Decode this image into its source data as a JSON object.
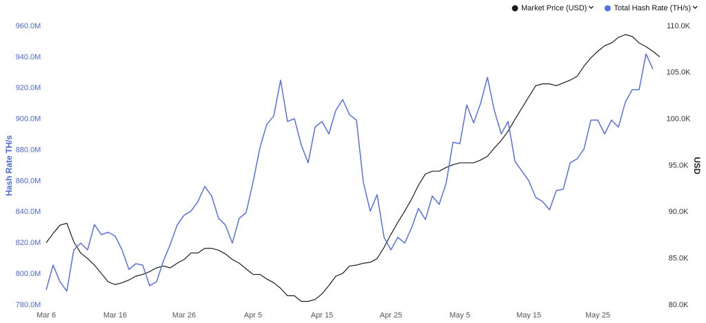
{
  "chart_data": {
    "type": "line",
    "legend_position": "top-right",
    "y_label": "Hash Rate TH/s",
    "y2_label": "USD",
    "categories": [
      "Mar 6",
      null,
      null,
      null,
      null,
      null,
      null,
      null,
      null,
      null,
      "Mar 16",
      null,
      null,
      null,
      null,
      null,
      null,
      null,
      null,
      null,
      "Mar 26",
      null,
      null,
      null,
      null,
      null,
      null,
      null,
      null,
      null,
      "Apr 5",
      null,
      null,
      null,
      null,
      null,
      null,
      null,
      null,
      null,
      "Apr 15",
      null,
      null,
      null,
      null,
      null,
      null,
      null,
      null,
      null,
      "Apr 25",
      null,
      null,
      null,
      null,
      null,
      null,
      null,
      null,
      null,
      "May 5",
      null,
      null,
      null,
      null,
      null,
      null,
      null,
      null,
      null,
      "May 15",
      null,
      null,
      null,
      null,
      null,
      null,
      null,
      null,
      null,
      "May 25",
      null,
      null,
      null,
      null,
      null,
      null,
      null,
      null,
      null
    ],
    "ylim": [
      780,
      960
    ],
    "yticks": [
      {
        "value": 780,
        "label": "780.0M"
      },
      {
        "value": 800,
        "label": "800.0M"
      },
      {
        "value": 820,
        "label": "820.0M"
      },
      {
        "value": 840,
        "label": "840.0M"
      },
      {
        "value": 860,
        "label": "860.0M"
      },
      {
        "value": 880,
        "label": "880.0M"
      },
      {
        "value": 900,
        "label": "900.0M"
      },
      {
        "value": 920,
        "label": "920.0M"
      },
      {
        "value": 940,
        "label": "940.0M"
      },
      {
        "value": 960,
        "label": "960.0M"
      }
    ],
    "y2lim": [
      80,
      110
    ],
    "y2ticks": [
      {
        "value": 80,
        "label": "80.0K"
      },
      {
        "value": 85,
        "label": "85.0K"
      },
      {
        "value": 90,
        "label": "90.0K"
      },
      {
        "value": 95,
        "label": "95.0K"
      },
      {
        "value": 100,
        "label": "100.0K"
      },
      {
        "value": 105,
        "label": "105.0K"
      },
      {
        "value": 110,
        "label": "110.0K"
      }
    ],
    "series": [
      {
        "name": "Market Price (USD)",
        "color": "#1a1a1a",
        "axis": "y2",
        "values": [
          86.7,
          87.7,
          88.6,
          88.8,
          86.8,
          85.6,
          85.0,
          84.3,
          83.4,
          82.5,
          82.2,
          82.4,
          82.7,
          83.1,
          83.3,
          83.6,
          84.0,
          84.2,
          84.0,
          84.5,
          84.9,
          85.6,
          85.6,
          86.1,
          86.1,
          85.9,
          85.5,
          84.9,
          84.5,
          83.9,
          83.3,
          83.3,
          82.8,
          82.4,
          81.8,
          81.0,
          81.0,
          80.4,
          80.4,
          80.6,
          81.2,
          82.1,
          83.1,
          83.4,
          84.2,
          84.3,
          84.5,
          84.6,
          85.0,
          86.2,
          87.6,
          88.9,
          90.1,
          91.4,
          92.9,
          94.1,
          94.4,
          94.4,
          94.8,
          95.1,
          95.3,
          95.3,
          95.3,
          95.6,
          96.0,
          96.9,
          97.7,
          98.7,
          100.0,
          101.2,
          102.4,
          103.6,
          103.8,
          103.8,
          103.6,
          103.9,
          104.2,
          104.6,
          105.7,
          106.6,
          107.3,
          107.9,
          108.2,
          108.8,
          109.1,
          108.9,
          108.2,
          107.8,
          107.3,
          106.7
        ]
      },
      {
        "name": "Total Hash Rate (TH/s)",
        "color": "#5470e0",
        "values": [
          789.8,
          805.8,
          795,
          789,
          815.6,
          820,
          815.6,
          832,
          825.4,
          827,
          824.5,
          815.6,
          803,
          806.7,
          805.8,
          792.5,
          795,
          808.5,
          819.2,
          831.7,
          838,
          840.6,
          846.8,
          856.6,
          850.4,
          836,
          831.7,
          820,
          836,
          839.7,
          859.3,
          881.6,
          896.7,
          902,
          925.2,
          898.5,
          900.3,
          883.3,
          871.8,
          894.9,
          898.5,
          890.5,
          905.6,
          912.7,
          902.9,
          899.4,
          859.3,
          840.6,
          851.3,
          823.7,
          815.6,
          823.7,
          820,
          829.9,
          842.4,
          835.2,
          850.4,
          845,
          858.4,
          885.1,
          884.2,
          909.2,
          897.6,
          910.1,
          927,
          905.6,
          890.5,
          898.5,
          872.7,
          866.4,
          860.2,
          849.5,
          846.8,
          841.5,
          853.9,
          854.8,
          871.8,
          874.4,
          880.7,
          899.4,
          899.4,
          890.5,
          899.4,
          894.9,
          911,
          919,
          919,
          942.1,
          932.3,
          null
        ]
      }
    ]
  }
}
